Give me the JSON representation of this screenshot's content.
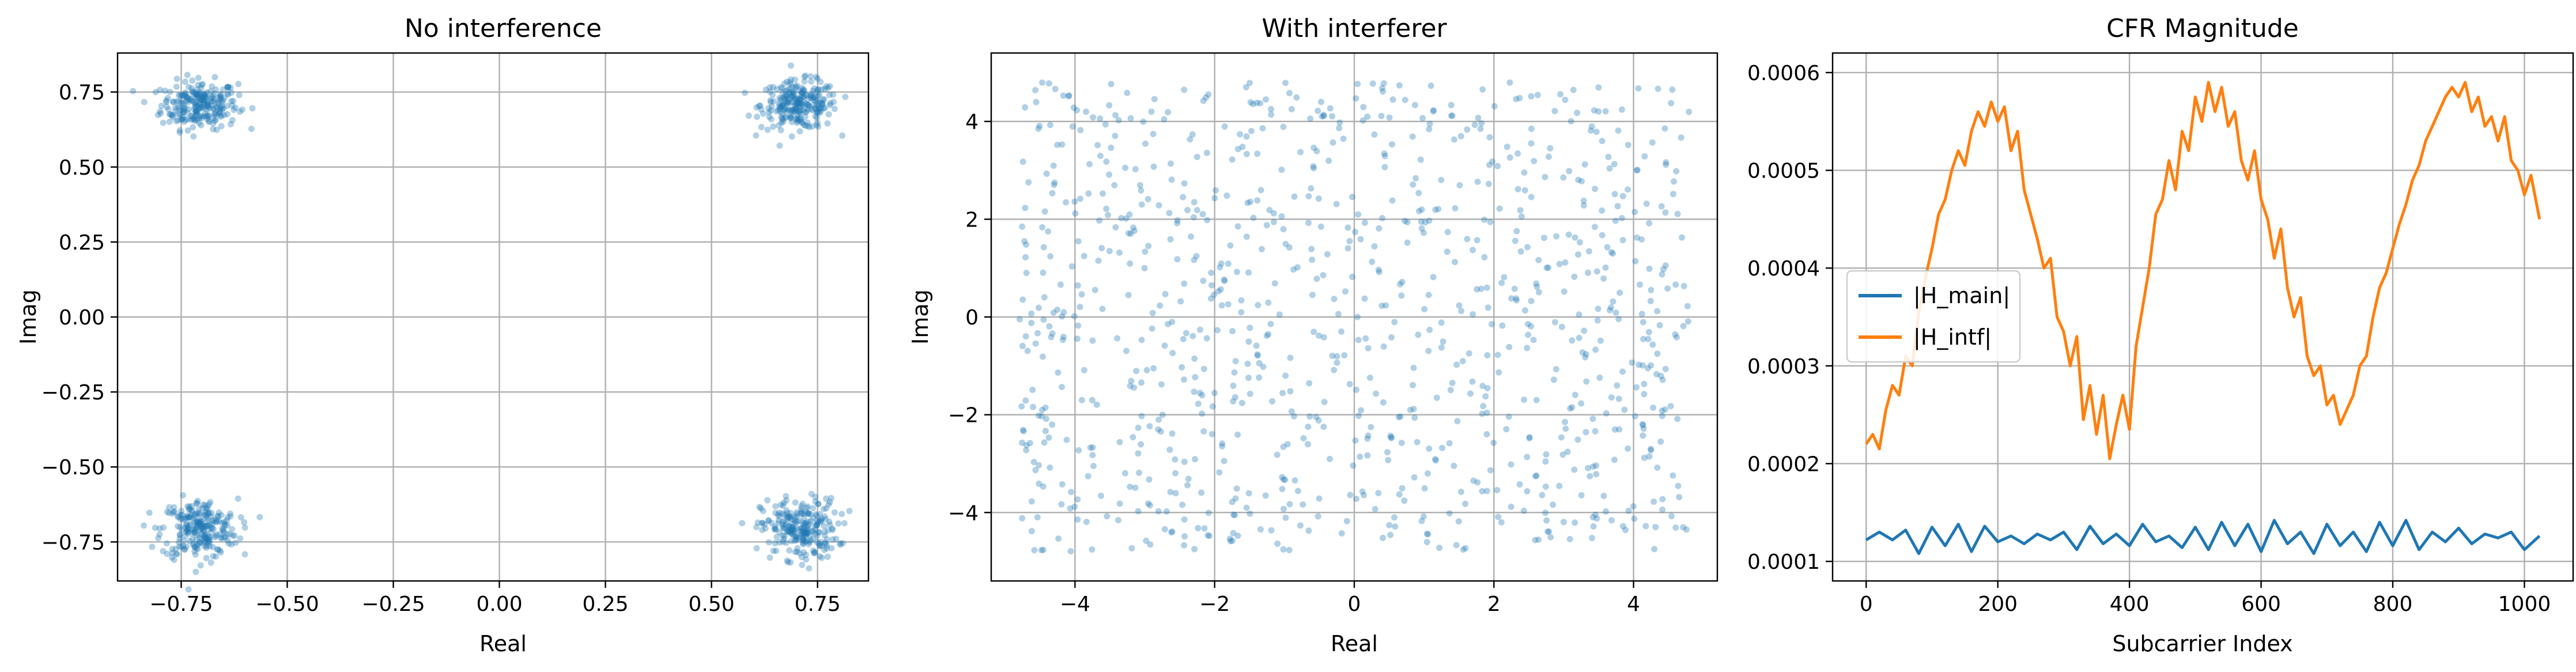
{
  "chart_data": [
    {
      "type": "scatter",
      "title": "No interference",
      "xlabel": "Real",
      "ylabel": "Imag",
      "xlim": [
        -0.9,
        0.87
      ],
      "ylim": [
        -0.88,
        0.88
      ],
      "xticks": [
        "−0.75",
        "−0.50",
        "−0.25",
        "0.00",
        "0.25",
        "0.50",
        "0.75"
      ],
      "xtick_values": [
        -0.75,
        -0.5,
        -0.25,
        0.0,
        0.25,
        0.5,
        0.75
      ],
      "yticks": [
        "−0.75",
        "−0.50",
        "−0.25",
        "0.00",
        "0.25",
        "0.50",
        "0.75"
      ],
      "ytick_values": [
        -0.75,
        -0.5,
        -0.25,
        0.0,
        0.25,
        0.5,
        0.75
      ],
      "grid": true,
      "color": "#1f77b4",
      "clusters": [
        {
          "center": [
            -0.707,
            0.707
          ],
          "spread_x": 0.045,
          "spread_y": 0.04,
          "count": 250
        },
        {
          "center": [
            0.707,
            0.707
          ],
          "spread_x": 0.045,
          "spread_y": 0.04,
          "count": 250
        },
        {
          "center": [
            -0.707,
            -0.707
          ],
          "spread_x": 0.045,
          "spread_y": 0.05,
          "count": 250
        },
        {
          "center": [
            0.707,
            -0.707
          ],
          "spread_x": 0.045,
          "spread_y": 0.05,
          "count": 250
        }
      ]
    },
    {
      "type": "scatter",
      "title": "With interferer",
      "xlabel": "Real",
      "ylabel": "Imag",
      "xlim": [
        -5.2,
        5.2
      ],
      "ylim": [
        -5.4,
        5.4
      ],
      "xticks": [
        "−4",
        "−2",
        "0",
        "2",
        "4"
      ],
      "xtick_values": [
        -4,
        -2,
        0,
        2,
        4
      ],
      "yticks": [
        "−4",
        "−2",
        "0",
        "2",
        "4"
      ],
      "ytick_values": [
        -4,
        -2,
        0,
        2,
        4
      ],
      "grid": true,
      "color": "#1f77b4",
      "range": [
        -4.8,
        4.8
      ],
      "count": 1000
    },
    {
      "type": "line",
      "title": "CFR Magnitude",
      "xlabel": "Subcarrier Index",
      "ylabel": "",
      "xlim": [
        -51,
        1074
      ],
      "ylim": [
        8e-05,
        0.00062
      ],
      "xticks": [
        "0",
        "200",
        "400",
        "600",
        "800",
        "1000"
      ],
      "xtick_values": [
        0,
        200,
        400,
        600,
        800,
        1000
      ],
      "yticks": [
        "0.0001",
        "0.0002",
        "0.0003",
        "0.0004",
        "0.0005",
        "0.0006"
      ],
      "ytick_values": [
        0.0001,
        0.0002,
        0.0003,
        0.0004,
        0.0005,
        0.0006
      ],
      "grid": true,
      "legend_position": "center-left",
      "series": [
        {
          "name": "|H_main|",
          "color": "#1f77b4",
          "x": [
            0,
            20,
            40,
            60,
            80,
            100,
            120,
            140,
            160,
            180,
            200,
            220,
            240,
            260,
            280,
            300,
            320,
            340,
            360,
            380,
            400,
            420,
            440,
            460,
            480,
            500,
            520,
            540,
            560,
            580,
            600,
            620,
            640,
            660,
            680,
            700,
            720,
            740,
            760,
            780,
            800,
            820,
            840,
            860,
            880,
            900,
            920,
            940,
            960,
            980,
            1000,
            1023
          ],
          "values": [
            0.000122,
            0.00013,
            0.000122,
            0.000132,
            0.000108,
            0.000135,
            0.000116,
            0.000138,
            0.00011,
            0.000136,
            0.00012,
            0.000126,
            0.000118,
            0.000128,
            0.000122,
            0.00013,
            0.000112,
            0.000136,
            0.000118,
            0.000128,
            0.000116,
            0.000138,
            0.00012,
            0.000126,
            0.000114,
            0.000135,
            0.000112,
            0.00014,
            0.000116,
            0.000138,
            0.00011,
            0.000142,
            0.000118,
            0.00013,
            0.000108,
            0.000138,
            0.000116,
            0.00013,
            0.00011,
            0.00014,
            0.000116,
            0.000142,
            0.000112,
            0.00013,
            0.00012,
            0.000134,
            0.000118,
            0.000128,
            0.000124,
            0.00013,
            0.000112,
            0.000126
          ]
        },
        {
          "name": "|H_intf|",
          "color": "#ff7f0e",
          "x": [
            0,
            10,
            20,
            30,
            40,
            50,
            60,
            70,
            80,
            90,
            100,
            110,
            120,
            130,
            140,
            150,
            160,
            170,
            180,
            190,
            200,
            210,
            220,
            230,
            240,
            250,
            260,
            270,
            280,
            290,
            300,
            310,
            320,
            330,
            340,
            350,
            360,
            370,
            380,
            390,
            400,
            410,
            420,
            430,
            440,
            450,
            460,
            470,
            480,
            490,
            500,
            510,
            520,
            530,
            540,
            550,
            560,
            570,
            580,
            590,
            600,
            610,
            620,
            630,
            640,
            650,
            660,
            670,
            680,
            690,
            700,
            710,
            720,
            730,
            740,
            750,
            760,
            770,
            780,
            790,
            800,
            810,
            820,
            830,
            840,
            850,
            860,
            870,
            880,
            890,
            900,
            910,
            920,
            930,
            940,
            950,
            960,
            970,
            980,
            990,
            1000,
            1010,
            1023
          ],
          "values": [
            0.00022,
            0.00023,
            0.000215,
            0.000255,
            0.00028,
            0.00027,
            0.00031,
            0.0003,
            0.000355,
            0.00039,
            0.00042,
            0.000455,
            0.00047,
            0.0005,
            0.00052,
            0.000505,
            0.00054,
            0.00056,
            0.000545,
            0.00057,
            0.00055,
            0.000565,
            0.00052,
            0.00054,
            0.00048,
            0.000455,
            0.00043,
            0.0004,
            0.00041,
            0.00035,
            0.000335,
            0.0003,
            0.00033,
            0.000245,
            0.00028,
            0.00023,
            0.00027,
            0.000205,
            0.00024,
            0.00027,
            0.000235,
            0.00032,
            0.00036,
            0.0004,
            0.000455,
            0.00047,
            0.00051,
            0.00048,
            0.00054,
            0.00052,
            0.000575,
            0.00055,
            0.00059,
            0.00056,
            0.000585,
            0.000545,
            0.00056,
            0.00051,
            0.00049,
            0.00052,
            0.00047,
            0.00045,
            0.00041,
            0.00044,
            0.00038,
            0.00035,
            0.00037,
            0.00031,
            0.00029,
            0.0003,
            0.00026,
            0.00027,
            0.00024,
            0.000255,
            0.00027,
            0.0003,
            0.00031,
            0.00035,
            0.00038,
            0.000395,
            0.00042,
            0.000445,
            0.000465,
            0.00049,
            0.000505,
            0.00053,
            0.000545,
            0.00056,
            0.000575,
            0.000585,
            0.000575,
            0.00059,
            0.00056,
            0.000575,
            0.000545,
            0.000555,
            0.00053,
            0.000555,
            0.00051,
            0.0005,
            0.000475,
            0.000495,
            0.00045
          ]
        }
      ]
    }
  ]
}
